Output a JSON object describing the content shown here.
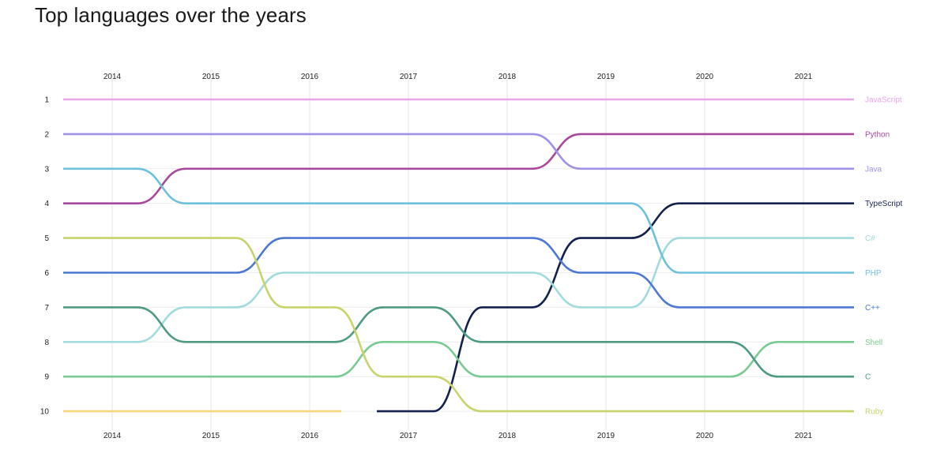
{
  "page": {
    "title": "Top languages over the years"
  },
  "chart_data": {
    "type": "line",
    "chart_subtype": "bump",
    "title": "Top languages over the years",
    "xlabel": "",
    "ylabel": "",
    "x": [
      2014,
      2015,
      2016,
      2017,
      2018,
      2019,
      2020,
      2021
    ],
    "rank_ticks": [
      1,
      2,
      3,
      4,
      5,
      6,
      7,
      8,
      9,
      10
    ],
    "y_inverted": true,
    "ylim": [
      1,
      10
    ],
    "grid": true,
    "legend": "right-end labels",
    "series": [
      {
        "name": "JavaScript",
        "color": "#e8a6ea",
        "ranks": [
          1,
          1,
          1,
          1,
          1,
          1,
          1,
          1
        ]
      },
      {
        "name": "Python",
        "color": "#a9499e",
        "ranks": [
          4,
          3,
          3,
          3,
          3,
          2,
          2,
          2
        ]
      },
      {
        "name": "Java",
        "color": "#9d91ea",
        "ranks": [
          2,
          2,
          2,
          2,
          2,
          3,
          3,
          3
        ]
      },
      {
        "name": "TypeScript",
        "color": "#13214d",
        "ranks": [
          null,
          null,
          null,
          10,
          7,
          5,
          4,
          4
        ]
      },
      {
        "name": "C#",
        "color": "#a2dbdd",
        "ranks": [
          8,
          7,
          6,
          6,
          6,
          7,
          5,
          5
        ]
      },
      {
        "name": "PHP",
        "color": "#6ec1dc",
        "ranks": [
          3,
          4,
          4,
          4,
          4,
          4,
          6,
          6
        ]
      },
      {
        "name": "C++",
        "color": "#4e79d2",
        "ranks": [
          6,
          6,
          5,
          5,
          5,
          6,
          7,
          7
        ]
      },
      {
        "name": "Shell",
        "color": "#79cb92",
        "ranks": [
          9,
          9,
          9,
          8,
          9,
          9,
          9,
          8
        ]
      },
      {
        "name": "C",
        "color": "#4e9a82",
        "ranks": [
          7,
          8,
          8,
          7,
          8,
          8,
          8,
          9
        ]
      },
      {
        "name": "Ruby",
        "color": "#c9d36c",
        "ranks": [
          5,
          5,
          7,
          9,
          10,
          10,
          10,
          10
        ]
      },
      {
        "name": "",
        "color": "#f5d87a",
        "ranks": [
          10,
          10,
          10,
          null,
          null,
          null,
          null,
          null
        ]
      }
    ]
  }
}
